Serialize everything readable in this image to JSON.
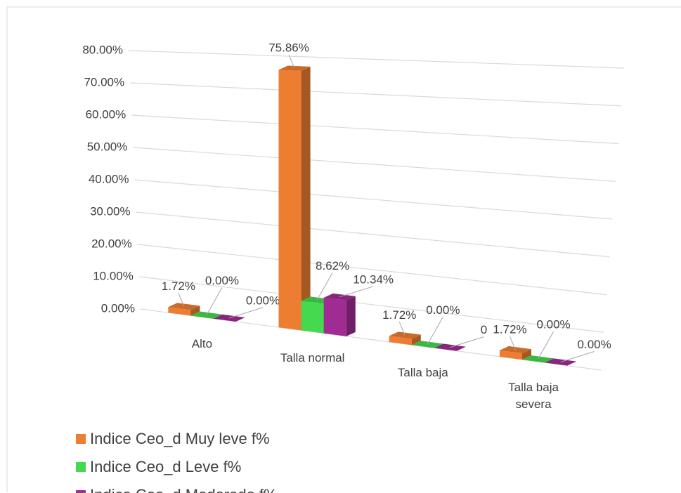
{
  "chart_data": {
    "type": "bar3d",
    "categories": [
      "Alto",
      "Talla normal",
      "Talla baja",
      "Talla baja severa"
    ],
    "series": [
      {
        "name": "Indice Ceo_d Muy leve f%",
        "color": "#ED7D31",
        "values": [
          1.72,
          75.86,
          1.72,
          1.72
        ],
        "value_labels": [
          "1.72%",
          "75.86%",
          "1.72%",
          "1.72%"
        ]
      },
      {
        "name": "Indice Ceo_d Leve f%",
        "color": "#44D94E",
        "values": [
          0,
          8.62,
          0,
          0
        ],
        "value_labels": [
          "0.00%",
          "8.62%",
          "0.00%",
          "0.00%"
        ]
      },
      {
        "name": "Indice Ceo_d Moderado f%",
        "color": "#A02B93",
        "values": [
          0,
          10.34,
          0,
          0
        ],
        "value_labels": [
          "0.00%",
          "10.34%",
          "0",
          "0.00%"
        ]
      }
    ],
    "ylim": [
      0,
      80
    ],
    "yticks": [
      {
        "value": 0,
        "label": "0.00%"
      },
      {
        "value": 10,
        "label": "10.00%"
      },
      {
        "value": 20,
        "label": "20.00%"
      },
      {
        "value": 30,
        "label": "30.00%"
      },
      {
        "value": 40,
        "label": "40.00%"
      },
      {
        "value": 50,
        "label": "50.00%"
      },
      {
        "value": 60,
        "label": "60.00%"
      },
      {
        "value": 70,
        "label": "70.00%"
      },
      {
        "value": 80,
        "label": "80.00%"
      }
    ],
    "grid": true,
    "legend": "bottom"
  }
}
